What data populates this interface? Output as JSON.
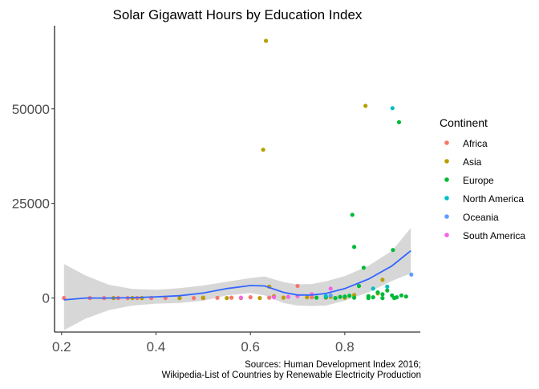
{
  "chart_data": {
    "type": "scatter",
    "title": "Solar Gigawatt Hours by Education Index",
    "xlabel": "",
    "ylabel": "",
    "xlim": [
      0.185,
      0.96
    ],
    "ylim": [
      -9000,
      72000
    ],
    "x_ticks": [
      0.2,
      0.4,
      0.6,
      0.8
    ],
    "x_tick_labels": [
      "0.2",
      "0.4",
      "0.6",
      "0.8"
    ],
    "y_ticks": [
      0,
      25000,
      50000
    ],
    "y_tick_labels": [
      "0",
      "25000",
      "50000"
    ],
    "grid": false,
    "legend": {
      "title": "Continent",
      "position": "right",
      "entries": [
        "Africa",
        "Asia",
        "Europe",
        "North America",
        "Oceania",
        "South America"
      ]
    },
    "colors": {
      "Africa": "#F8766D",
      "Asia": "#B79F00",
      "Europe": "#00BA38",
      "North America": "#00BFC4",
      "Oceania": "#619CFF",
      "South America": "#F564E3",
      "smooth_line": "#3366FF",
      "ribbon": "#D3D3D3"
    },
    "series": [
      {
        "name": "Africa",
        "points": [
          [
            0.205,
            0
          ],
          [
            0.26,
            0
          ],
          [
            0.29,
            0
          ],
          [
            0.32,
            0
          ],
          [
            0.34,
            0
          ],
          [
            0.36,
            0
          ],
          [
            0.39,
            0
          ],
          [
            0.42,
            0
          ],
          [
            0.45,
            0
          ],
          [
            0.48,
            0
          ],
          [
            0.5,
            0
          ],
          [
            0.53,
            50
          ],
          [
            0.56,
            100
          ],
          [
            0.6,
            200
          ],
          [
            0.64,
            100
          ],
          [
            0.7,
            3200
          ],
          [
            0.73,
            200
          ],
          [
            0.76,
            100
          ]
        ]
      },
      {
        "name": "Asia",
        "points": [
          [
            0.31,
            0
          ],
          [
            0.35,
            0
          ],
          [
            0.37,
            0
          ],
          [
            0.45,
            0
          ],
          [
            0.5,
            100
          ],
          [
            0.55,
            0
          ],
          [
            0.58,
            0
          ],
          [
            0.62,
            0
          ],
          [
            0.627,
            39200
          ],
          [
            0.633,
            68000
          ],
          [
            0.64,
            3000
          ],
          [
            0.65,
            500
          ],
          [
            0.67,
            100
          ],
          [
            0.72,
            200
          ],
          [
            0.77,
            300
          ],
          [
            0.8,
            50
          ],
          [
            0.82,
            800
          ],
          [
            0.844,
            50800
          ],
          [
            0.87,
            1200
          ],
          [
            0.88,
            4800
          ]
        ]
      },
      {
        "name": "Europe",
        "points": [
          [
            0.74,
            100
          ],
          [
            0.76,
            200
          ],
          [
            0.79,
            300
          ],
          [
            0.8,
            400
          ],
          [
            0.81,
            600
          ],
          [
            0.816,
            22000
          ],
          [
            0.82,
            13500
          ],
          [
            0.83,
            3200
          ],
          [
            0.84,
            8000
          ],
          [
            0.85,
            500
          ],
          [
            0.86,
            200
          ],
          [
            0.87,
            1500
          ],
          [
            0.88,
            1000
          ],
          [
            0.89,
            2000
          ],
          [
            0.9,
            700
          ],
          [
            0.902,
            12700
          ],
          [
            0.91,
            200
          ],
          [
            0.915,
            46500
          ],
          [
            0.92,
            700
          ],
          [
            0.93,
            400
          ],
          [
            0.78,
            0
          ],
          [
            0.82,
            100
          ],
          [
            0.85,
            0
          ],
          [
            0.88,
            0
          ],
          [
            0.905,
            0
          ]
        ]
      },
      {
        "name": "North America",
        "points": [
          [
            0.76,
            500
          ],
          [
            0.901,
            50200
          ],
          [
            0.86,
            2500
          ],
          [
            0.89,
            3000
          ]
        ]
      },
      {
        "name": "Oceania",
        "points": [
          [
            0.77,
            700
          ],
          [
            0.941,
            6200
          ]
        ]
      },
      {
        "name": "South America",
        "points": [
          [
            0.58,
            100
          ],
          [
            0.65,
            200
          ],
          [
            0.68,
            300
          ],
          [
            0.7,
            500
          ],
          [
            0.73,
            1000
          ],
          [
            0.77,
            2500
          ]
        ]
      }
    ],
    "smooth": {
      "x": [
        0.205,
        0.25,
        0.3,
        0.35,
        0.4,
        0.45,
        0.5,
        0.55,
        0.6,
        0.63,
        0.67,
        0.7,
        0.73,
        0.76,
        0.8,
        0.85,
        0.9,
        0.94
      ],
      "y": [
        -500,
        0,
        0,
        100,
        300,
        600,
        1300,
        2500,
        3300,
        3200,
        1500,
        800,
        800,
        1200,
        2500,
        5000,
        8500,
        12500
      ],
      "upper": [
        9000,
        6000,
        3500,
        2400,
        2200,
        2600,
        3300,
        4300,
        5300,
        5700,
        4200,
        3600,
        3700,
        4400,
        5800,
        8500,
        12500,
        18500
      ],
      "lower": [
        -8500,
        -5500,
        -3200,
        -2000,
        -1500,
        -1300,
        -700,
        700,
        1300,
        700,
        -1300,
        -2000,
        -2100,
        -2000,
        -700,
        1500,
        4500,
        6500
      ]
    }
  },
  "caption": {
    "line1": "Sources: Human Development Index 2016;",
    "line2": "Wikipedia-List of Countries by Renewable Electricity Production"
  }
}
